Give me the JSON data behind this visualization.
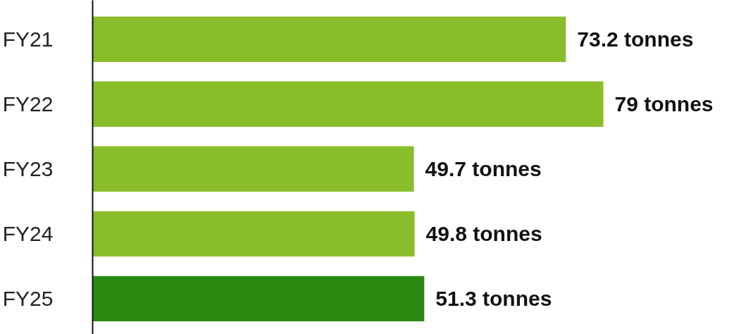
{
  "chart_data": {
    "type": "bar",
    "orientation": "horizontal",
    "categories": [
      "FY21",
      "FY22",
      "FY23",
      "FY24",
      "FY25"
    ],
    "values": [
      73.2,
      79,
      49.7,
      49.8,
      51.3
    ],
    "colors": [
      "#8abd2a",
      "#8abd2a",
      "#8abd2a",
      "#8abd2a",
      "#2a8a12"
    ],
    "value_labels": [
      "73.2 tonnes",
      "79 tonnes",
      "49.7 tonnes",
      "49.8 tonnes",
      "51.3 tonnes"
    ]
  }
}
